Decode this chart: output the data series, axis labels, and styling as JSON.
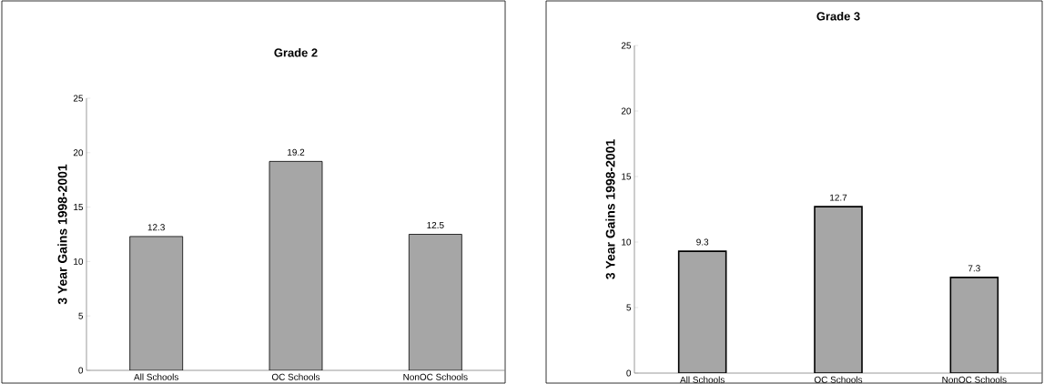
{
  "chart_data": [
    {
      "type": "bar",
      "title": "Grade 2",
      "ylabel": "3 Year Gains 1998-2001",
      "categories": [
        "All Schools",
        "OC Schools",
        "NonOC Schools"
      ],
      "values": [
        12.3,
        19.2,
        12.5
      ],
      "color": "#a6a6a6",
      "ylim": [
        0,
        25
      ],
      "yticks": [
        0,
        5,
        10,
        15,
        20,
        25
      ],
      "data_labels": true
    },
    {
      "type": "bar",
      "title": "Grade 3",
      "ylabel": "3 Year Gains 1998-2001",
      "categories": [
        "All Schools",
        "OC Schools",
        "NonOC Schools"
      ],
      "values": [
        9.3,
        12.7,
        7.3
      ],
      "color": "#a6a6a6",
      "ylim": [
        0,
        25
      ],
      "yticks": [
        0,
        5,
        10,
        15,
        20,
        25
      ],
      "data_labels": true
    }
  ]
}
